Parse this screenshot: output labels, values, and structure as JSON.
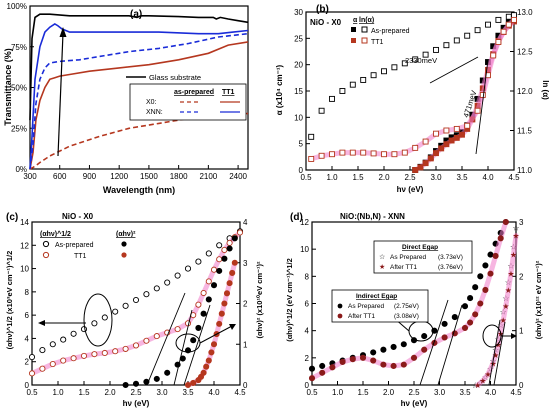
{
  "panels": {
    "a": {
      "letter": "(a)"
    },
    "b": {
      "letter": "(b)",
      "label": "NiO - X0"
    },
    "c": {
      "letter": "(c)",
      "label": "NiO - X0"
    },
    "d": {
      "letter": "(d)",
      "label": "NiO:(Nb,N) - XNN"
    }
  },
  "colors": {
    "black": "#000000",
    "red": "#b5371f",
    "blue": "#1a2cd8",
    "brown": "#a0401f",
    "pink": "#f07ac8",
    "darkred": "#8b1a1a"
  },
  "chart_data": [
    {
      "id": "a",
      "type": "line",
      "xlabel": "Wavelength (nm)",
      "ylabel": "Transmittance (%)",
      "xlim": [
        300,
        2500
      ],
      "ylim": [
        0,
        100
      ],
      "x_ticks": [
        300,
        600,
        900,
        1200,
        1500,
        1800,
        2100,
        2400
      ],
      "y_ticks": [
        0,
        25,
        50,
        75,
        100
      ],
      "y_tick_labels": [
        "0%",
        "25%",
        "50%",
        "75%",
        "100%"
      ],
      "legend": {
        "title": "Glass substrate",
        "col1": "as-prepared",
        "col2": "TT1",
        "row1": "X0:",
        "row2": "XNN:"
      },
      "series": [
        {
          "name": "Glass substrate",
          "color": "#000000",
          "dash": "solid",
          "x": [
            300,
            320,
            350,
            400,
            500,
            700,
            1000,
            1300,
            1380,
            1420,
            1500,
            1800,
            2000,
            2150,
            2180,
            2220,
            2300,
            2400,
            2500
          ],
          "y": [
            30,
            80,
            93,
            95,
            95,
            94,
            94,
            94,
            93,
            94,
            94,
            93.5,
            93,
            93,
            92,
            93,
            92,
            91,
            90
          ]
        },
        {
          "name": "X0 as-prepared",
          "color": "#b5371f",
          "dash": "dash",
          "x": [
            300,
            330,
            360,
            400,
            500,
            700,
            1000,
            1300,
            1600,
            1900,
            2100,
            2250,
            2400,
            2500
          ],
          "y": [
            0,
            1,
            2,
            4,
            8,
            14,
            20,
            25,
            28,
            31,
            32,
            33,
            34,
            34
          ]
        },
        {
          "name": "X0 TT1",
          "color": "#b5371f",
          "dash": "solid",
          "x": [
            300,
            330,
            360,
            400,
            450,
            500,
            550,
            600,
            700,
            900,
            1200,
            1500,
            1800,
            2100,
            2300,
            2500
          ],
          "y": [
            0,
            10,
            30,
            42,
            50,
            55,
            56,
            57,
            58,
            60,
            62,
            64,
            67,
            71,
            76,
            78
          ]
        },
        {
          "name": "XNN as-prepared",
          "color": "#1a2cd8",
          "dash": "dash",
          "x": [
            300,
            330,
            360,
            400,
            450,
            500,
            600,
            800,
            1000,
            1300,
            1600,
            1900,
            2200,
            2500
          ],
          "y": [
            0,
            15,
            40,
            55,
            62,
            65,
            66,
            67,
            69,
            72,
            74,
            77,
            81,
            83
          ]
        },
        {
          "name": "XNN TT1",
          "color": "#1a2cd8",
          "dash": "solid",
          "x": [
            300,
            320,
            350,
            400,
            450,
            500,
            550,
            580,
            620,
            700,
            900,
            1200,
            1600,
            2000,
            2200,
            2350,
            2500
          ],
          "y": [
            0,
            20,
            55,
            75,
            84,
            87,
            89,
            88,
            86,
            84,
            84,
            84,
            84,
            83,
            83,
            84,
            85
          ]
        }
      ]
    },
    {
      "id": "b",
      "type": "scatter",
      "xlabel": "hν (eV)",
      "ylabel": "α (x10⁴ cm⁻¹)",
      "ylabel_right": "ln (α)",
      "xlim": [
        0.5,
        4.5
      ],
      "ylim": [
        0,
        30
      ],
      "ylim_right": [
        11.0,
        13.0
      ],
      "x_ticks": [
        0.5,
        1.0,
        1.5,
        2.0,
        2.5,
        3.0,
        3.5,
        4.0,
        4.5
      ],
      "y_ticks": [
        0,
        5,
        10,
        15,
        20,
        25,
        30
      ],
      "y_ticks_right": [
        11.0,
        11.5,
        12.0,
        12.5,
        13.0
      ],
      "legend": {
        "col1": "α",
        "col2": "ln(α)",
        "row1": "As-prepared",
        "row2": "TT1"
      },
      "annotations": [
        "2330meV",
        "471meV"
      ],
      "series": [
        {
          "name": "As-prepared",
          "quantity": "α",
          "marker": "filled-square",
          "color": "#000000",
          "x": [
            2.6,
            2.7,
            2.8,
            2.9,
            3.0,
            3.1,
            3.2,
            3.3,
            3.4,
            3.5,
            3.6,
            3.7,
            3.8,
            3.9,
            4.0,
            4.1,
            4.2,
            4.3,
            4.4,
            4.5
          ],
          "y": [
            0,
            0.6,
            1.4,
            2.4,
            3.6,
            4.6,
            5.6,
            6.2,
            6.6,
            7.2,
            8.5,
            10.5,
            13.5,
            17,
            20.5,
            23.5,
            25.5,
            27,
            28,
            28.5
          ]
        },
        {
          "name": "TT1",
          "quantity": "α",
          "marker": "filled-square",
          "color": "#b5371f",
          "x": [
            2.6,
            2.7,
            2.8,
            2.9,
            3.0,
            3.1,
            3.2,
            3.3,
            3.4,
            3.5,
            3.6,
            3.7,
            3.8,
            3.9,
            4.0,
            4.1,
            4.2,
            4.3,
            4.4,
            4.5
          ],
          "y": [
            0,
            0.5,
            1.3,
            2.2,
            3.2,
            4.1,
            4.9,
            5.6,
            6.1,
            6.7,
            7.8,
            9.6,
            12.2,
            15.5,
            19,
            22,
            24.5,
            26.2,
            27.4,
            28.2
          ]
        },
        {
          "name": "As-prepared",
          "quantity": "ln(α)",
          "marker": "open-square",
          "color": "#000000",
          "axis": "right",
          "x": [
            0.6,
            0.8,
            1.0,
            1.2,
            1.4,
            1.6,
            1.8,
            2.0,
            2.2,
            2.4,
            2.6,
            2.8,
            3.0,
            3.2,
            3.4,
            3.6,
            3.8,
            4.0,
            4.2,
            4.4,
            4.5
          ],
          "y": [
            11.42,
            11.75,
            11.9,
            12.0,
            12.08,
            12.14,
            12.2,
            12.25,
            12.3,
            12.35,
            12.4,
            12.46,
            12.52,
            12.58,
            12.64,
            12.7,
            12.77,
            12.84,
            12.9,
            12.94,
            12.96
          ]
        },
        {
          "name": "TT1",
          "quantity": "ln(α)",
          "marker": "open-square",
          "color": "#b5371f",
          "axis": "right",
          "x": [
            0.6,
            0.8,
            1.0,
            1.2,
            1.4,
            1.6,
            1.8,
            2.0,
            2.2,
            2.4,
            2.6,
            2.8,
            3.0,
            3.2,
            3.4,
            3.6,
            3.8,
            3.9,
            4.0,
            4.1,
            4.2,
            4.3,
            4.4,
            4.5
          ],
          "y": [
            11.14,
            11.18,
            11.2,
            11.22,
            11.22,
            11.22,
            11.21,
            11.2,
            11.2,
            11.22,
            11.28,
            11.36,
            11.46,
            11.5,
            11.52,
            11.56,
            11.75,
            11.95,
            12.2,
            12.45,
            12.62,
            12.75,
            12.84,
            12.9
          ]
        }
      ]
    },
    {
      "id": "c",
      "type": "scatter",
      "xlabel": "hν  (eV)",
      "ylabel": "(αhν)^1/2 (x10³eV cm⁻¹)^1/2",
      "ylabel_right": "(αhν)² (x10¹⁰eV cm⁻¹)²",
      "xlim": [
        0.5,
        4.5
      ],
      "ylim": [
        0,
        14
      ],
      "ylim_right": [
        0,
        4
      ],
      "x_ticks": [
        0.5,
        1.0,
        1.5,
        2.0,
        2.5,
        3.0,
        3.5,
        4.0,
        4.5
      ],
      "y_ticks": [
        0,
        2,
        4,
        6,
        8,
        10,
        12,
        14
      ],
      "y_ticks_right": [
        0,
        1,
        2,
        3,
        4
      ],
      "legend": {
        "col1": "(αhν)^1/2",
        "col2": "(αhν)²",
        "row1": "As-prepared",
        "row2": "TT1"
      },
      "series": [
        {
          "name": "As-prepared",
          "quantity": "(αhν)^1/2",
          "marker": "open-circle",
          "color": "#000000",
          "x": [
            0.5,
            0.7,
            0.9,
            1.1,
            1.3,
            1.5,
            1.7,
            1.9,
            2.1,
            2.3,
            2.5,
            2.7,
            2.9,
            3.1,
            3.3,
            3.5,
            3.7,
            3.9,
            4.1,
            4.3,
            4.5
          ],
          "y": [
            2.4,
            3.0,
            3.5,
            3.9,
            4.4,
            4.8,
            5.3,
            5.8,
            6.3,
            6.8,
            7.3,
            7.8,
            8.3,
            8.8,
            9.4,
            10,
            10.6,
            11.3,
            12,
            12.6,
            13.2
          ]
        },
        {
          "name": "TT1",
          "quantity": "(αhν)^1/2",
          "marker": "open-circle",
          "color": "#b5371f",
          "x": [
            0.5,
            0.7,
            0.9,
            1.1,
            1.3,
            1.5,
            1.7,
            1.9,
            2.1,
            2.3,
            2.5,
            2.7,
            2.9,
            3.1,
            3.3,
            3.5,
            3.6,
            3.7,
            3.8,
            3.9,
            4.0,
            4.1,
            4.2,
            4.3,
            4.4,
            4.5
          ],
          "y": [
            1.0,
            1.4,
            1.8,
            2.1,
            2.3,
            2.5,
            2.65,
            2.75,
            2.9,
            3.1,
            3.4,
            3.8,
            4.2,
            4.5,
            4.8,
            5.3,
            6.0,
            6.9,
            7.9,
            8.9,
            9.9,
            10.8,
            11.6,
            12.2,
            12.7,
            13.1
          ]
        },
        {
          "name": "As-prepared",
          "quantity": "(αhν)²",
          "marker": "filled-circle",
          "color": "#000000",
          "axis": "right",
          "x": [
            2.3,
            2.5,
            2.7,
            2.9,
            3.1,
            3.3,
            3.4,
            3.5,
            3.6,
            3.7,
            3.8,
            3.9,
            4.0,
            4.1,
            4.2,
            4.3,
            4.4
          ],
          "y": [
            0.0,
            0.03,
            0.08,
            0.15,
            0.3,
            0.5,
            0.65,
            0.85,
            1.1,
            1.4,
            1.75,
            2.1,
            2.45,
            2.8,
            3.1,
            3.35,
            3.6
          ]
        },
        {
          "name": "TT1",
          "quantity": "(αhν)²",
          "marker": "filled-circle",
          "color": "#b5371f",
          "axis": "right",
          "x": [
            3.5,
            3.6,
            3.7,
            3.75,
            3.8,
            3.85,
            3.9,
            3.95,
            4.0,
            4.05,
            4.1,
            4.15,
            4.2,
            4.25,
            4.3,
            4.35,
            4.4
          ],
          "y": [
            0.0,
            0.05,
            0.12,
            0.2,
            0.3,
            0.45,
            0.6,
            0.8,
            1.0,
            1.25,
            1.5,
            1.75,
            2.0,
            2.25,
            2.5,
            2.75,
            3.0
          ]
        }
      ]
    },
    {
      "id": "d",
      "type": "scatter",
      "xlabel": "hν  (eV)",
      "ylabel": "(αhν)^1/2  (eV cm⁻¹)^1/2",
      "ylabel_right": "(αhν)² (x10¹² eV cm⁻¹)²",
      "xlim": [
        0.5,
        4.5
      ],
      "ylim": [
        0,
        12
      ],
      "ylim_right": [
        0,
        3
      ],
      "x_ticks": [
        0.5,
        1.0,
        1.5,
        2.0,
        2.5,
        3.0,
        3.5,
        4.0,
        4.5
      ],
      "y_ticks": [
        0,
        2,
        4,
        6,
        8,
        10,
        12
      ],
      "y_ticks_right": [
        0,
        1,
        2,
        3
      ],
      "legend_direct": {
        "title": "Direct Egap",
        "row1": "As Prepared",
        "row1_value": "(3.73eV)",
        "row2": "After TT1",
        "row2_value": "(3.76eV)"
      },
      "legend_indirect": {
        "title": "Indirect Egap",
        "row1": "As Prepared",
        "row1_value": "(2.75eV)",
        "row2": "After TT1",
        "row2_value": "(3.08eV)"
      },
      "series": [
        {
          "name": "As Prepared (indirect)",
          "marker": "filled-circle",
          "color": "#000000",
          "x": [
            0.5,
            0.7,
            0.9,
            1.1,
            1.3,
            1.5,
            1.7,
            1.9,
            2.1,
            2.3,
            2.5,
            2.7,
            2.9,
            3.1,
            3.3,
            3.5,
            3.6,
            3.7,
            3.8,
            3.9,
            4.0,
            4.1,
            4.2,
            4.3
          ],
          "y": [
            1.2,
            1.4,
            1.6,
            1.8,
            2.0,
            2.2,
            2.4,
            2.6,
            2.8,
            3.0,
            3.3,
            3.6,
            4.0,
            4.5,
            5.0,
            5.8,
            6.4,
            7.2,
            8.0,
            8.8,
            9.6,
            10.4,
            11.2,
            12.0
          ]
        },
        {
          "name": "After TT1 (indirect)",
          "marker": "filled-circle",
          "color": "#8b1a1a",
          "x": [
            0.5,
            0.7,
            0.9,
            1.1,
            1.3,
            1.5,
            1.7,
            1.9,
            2.1,
            2.3,
            2.5,
            2.7,
            2.9,
            3.1,
            3.3,
            3.5,
            3.6,
            3.7,
            3.8,
            3.9,
            4.0,
            4.1,
            4.2,
            4.3
          ],
          "y": [
            0.5,
            0.9,
            1.3,
            1.7,
            1.9,
            2.0,
            1.8,
            1.5,
            1.4,
            1.5,
            2.0,
            2.6,
            3.1,
            3.5,
            3.8,
            4.2,
            4.6,
            5.2,
            6.0,
            7.0,
            8.2,
            9.5,
            10.8,
            12.0
          ]
        },
        {
          "name": "As Prepared (direct)",
          "marker": "open-star",
          "color": "#000000",
          "axis": "right",
          "x": [
            3.7,
            3.8,
            3.9,
            4.0,
            4.05,
            4.1,
            4.15,
            4.2,
            4.25,
            4.3,
            4.35,
            4.4,
            4.45,
            4.5
          ],
          "y": [
            0.0,
            0.05,
            0.15,
            0.3,
            0.45,
            0.65,
            0.85,
            1.1,
            1.35,
            1.6,
            1.9,
            2.2,
            2.55,
            2.9
          ]
        },
        {
          "name": "After TT1 (direct)",
          "marker": "filled-star",
          "color": "#8b1a1a",
          "axis": "right",
          "x": [
            3.75,
            3.85,
            3.95,
            4.05,
            4.1,
            4.15,
            4.2,
            4.25,
            4.3,
            4.35,
            4.4,
            4.45,
            4.5
          ],
          "y": [
            0.0,
            0.08,
            0.2,
            0.4,
            0.55,
            0.75,
            0.95,
            1.2,
            1.45,
            1.75,
            2.05,
            2.4,
            2.75
          ]
        }
      ]
    }
  ]
}
